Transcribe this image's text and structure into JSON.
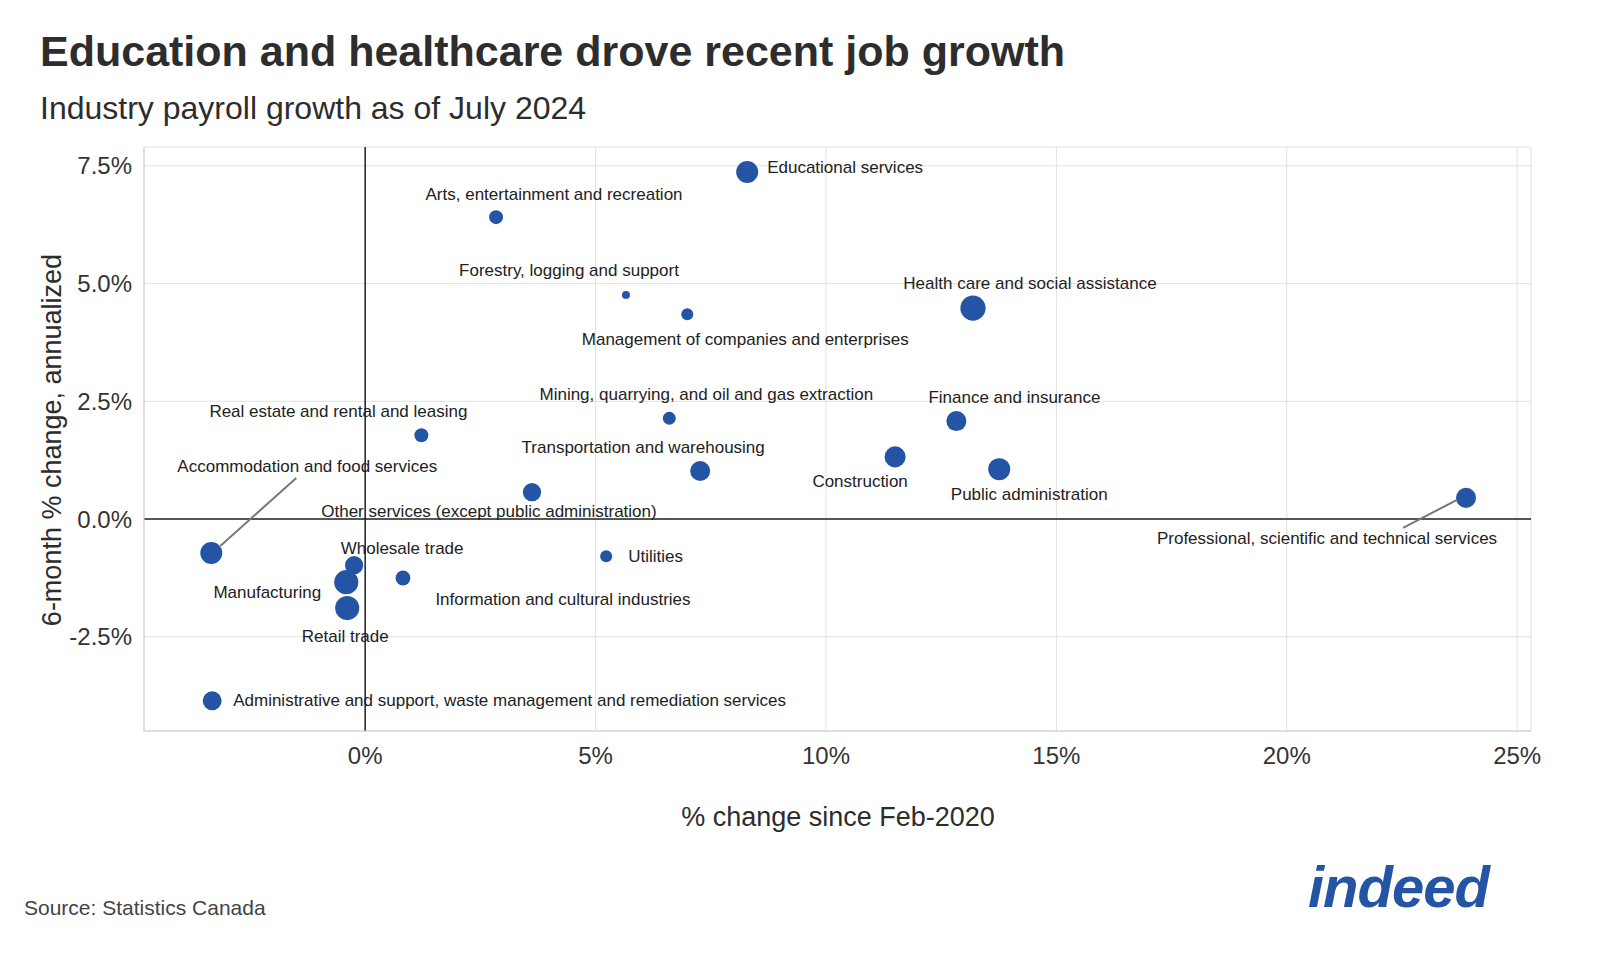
{
  "chart_data": {
    "type": "scatter",
    "title": "Education and healthcare drove recent job growth",
    "subtitle": "Industry payroll growth as of July 2024",
    "x_label": "% change since Feb-2020",
    "y_label": "6-month % change, annualized",
    "source": "Source: Statistics Canada",
    "logo": "indeed",
    "color": "#2455a4",
    "marker": "circle",
    "grid": true,
    "labels": [
      "Educational services",
      "Arts, entertainment and recreation",
      "Forestry, logging and support",
      "Management of companies and enterprises",
      "Health care and social assistance",
      "Mining, quarrying, and oil and gas extraction",
      "Real estate and rental and leasing",
      "Finance and insurance",
      "Construction",
      "Public administration",
      "Transportation and warehousing",
      "Other services (except public administration)",
      "Professional, scientific and technical services",
      "Accommodation and food services",
      "Wholesale trade",
      "Manufacturing",
      "Retail trade",
      "Information and cultural industries",
      "Utilities",
      "Administrative and support, waste management and remediation services"
    ],
    "x": [
      8.29,
      2.84,
      5.66,
      6.99,
      13.19,
      6.6,
      1.22,
      12.83,
      11.5,
      13.76,
      7.27,
      3.62,
      23.89,
      -3.34,
      -0.24,
      -0.41,
      -0.39,
      0.82,
      5.23,
      -3.32
    ],
    "values": [
      7.37,
      6.41,
      4.76,
      4.35,
      4.48,
      2.14,
      1.78,
      2.08,
      1.32,
      1.06,
      1.02,
      0.57,
      0.45,
      -0.72,
      -0.98,
      -1.34,
      -1.89,
      -1.25,
      -0.79,
      -3.86
    ],
    "sizes": [
      1750,
      700,
      230,
      520,
      2300,
      600,
      700,
      1450,
      1600,
      1750,
      1450,
      1200,
      1450,
      1750,
      1200,
      2100,
      2100,
      800,
      520,
      1300
    ],
    "xlim": [
      -4.8,
      25.3
    ],
    "xticks": [
      {
        "value": 0,
        "label": "0%"
      },
      {
        "value": 5,
        "label": "5%"
      },
      {
        "value": 10,
        "label": "10%"
      },
      {
        "value": 15,
        "label": "15%"
      },
      {
        "value": 20,
        "label": "20%"
      },
      {
        "value": 25,
        "label": "25%"
      }
    ],
    "ylim": [
      -4.5,
      7.9
    ],
    "yticks": [
      {
        "value": -2.5,
        "label": "-2.5%"
      },
      {
        "value": 0,
        "label": "0.0%"
      },
      {
        "value": 2.5,
        "label": "2.5%"
      },
      {
        "value": 5,
        "label": "5.0%"
      },
      {
        "value": 7.5,
        "label": "7.5%"
      }
    ]
  }
}
